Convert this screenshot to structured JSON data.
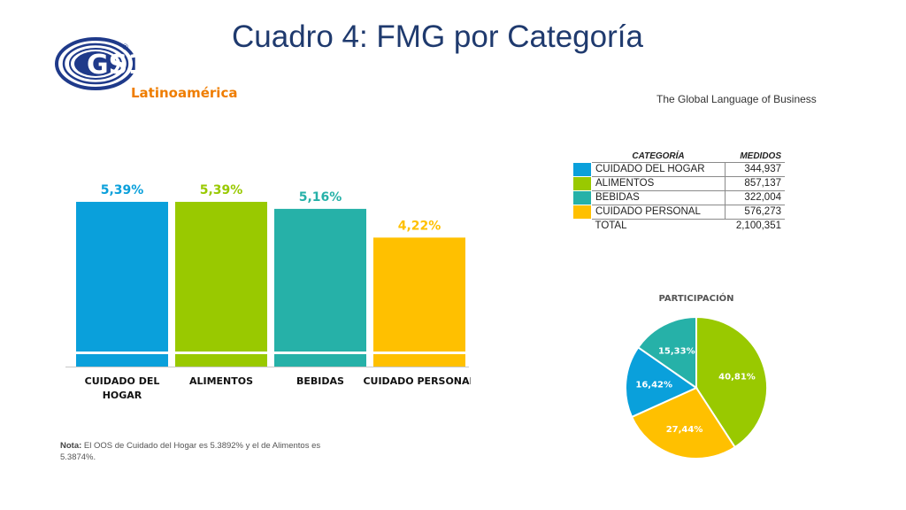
{
  "slide": {
    "title": "Cuadro 4: FMG por Categoría",
    "tagline": "The Global Language of Business"
  },
  "logo": {
    "text": "GS1",
    "registered": "®",
    "region": "Latinoamérica",
    "colors": {
      "navy": "#1f3a8a",
      "orange": "#ef7d00"
    }
  },
  "chart_data": [
    {
      "type": "bar",
      "categories": [
        "CUIDADO DEL HOGAR",
        "ALIMENTOS",
        "BEBIDAS",
        "CUIDADO PERSONAL"
      ],
      "category_lines": [
        [
          "CUIDADO DEL",
          "HOGAR"
        ],
        [
          "ALIMENTOS"
        ],
        [
          "BEBIDAS"
        ],
        [
          "CUIDADO PERSONAL"
        ]
      ],
      "values": [
        5.39,
        5.39,
        5.16,
        4.22
      ],
      "data_labels": [
        "5,39%",
        "5,39%",
        "5,16%",
        "4,22%"
      ],
      "colors": [
        "#0aa0db",
        "#99c900",
        "#26b1a8",
        "#ffc000"
      ],
      "ylim": [
        0,
        6.2
      ],
      "grid": false,
      "legend": false,
      "title": "",
      "xlabel": "",
      "ylabel": ""
    },
    {
      "type": "table",
      "columns": [
        "CATEGORÍA",
        "MEDIDOS"
      ],
      "rows": [
        {
          "category": "CUIDADO DEL HOGAR",
          "value": "344,937",
          "color": "#0aa0db"
        },
        {
          "category": "ALIMENTOS",
          "value": "857,137",
          "color": "#99c900"
        },
        {
          "category": "BEBIDAS",
          "value": "322,004",
          "color": "#26b1a8"
        },
        {
          "category": "CUIDADO PERSONAL",
          "value": "576,273",
          "color": "#ffc000"
        }
      ],
      "total": {
        "category": "TOTAL",
        "value": "2,100,351"
      }
    },
    {
      "type": "pie",
      "title": "PARTICIPACIÓN",
      "slices": [
        {
          "label": "40,81%",
          "value": 40.81,
          "color": "#99c900"
        },
        {
          "label": "27,44%",
          "value": 27.44,
          "color": "#ffc000"
        },
        {
          "label": "16,42%",
          "value": 16.42,
          "color": "#0aa0db"
        },
        {
          "label": "15,33%",
          "value": 15.33,
          "color": "#26b1a8"
        }
      ],
      "legend": false
    }
  ],
  "note": {
    "label": "Nota:",
    "text": "El OOS de Cuidado del Hogar es 5.3892% y el de Alimentos es 5.3874%."
  }
}
